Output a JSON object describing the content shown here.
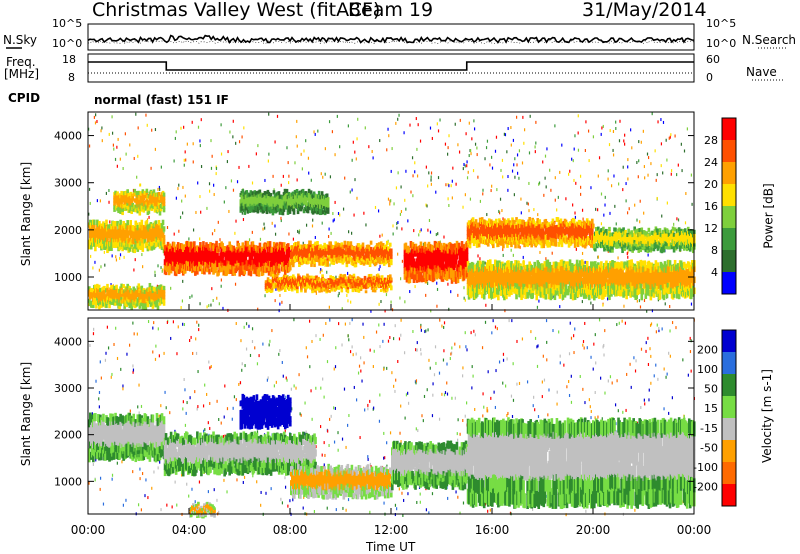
{
  "header": {
    "station": "Christmas Valley West (fitACF)",
    "beam": "Beam 19",
    "date": "31/May/2014",
    "mode": "normal (fast) 151 IF"
  },
  "nsky_panel": {
    "left_label": "N.Sky",
    "left_ticks": [
      "10^5",
      "10^0"
    ],
    "right_label": "N.Search",
    "right_ticks": [
      "10^5",
      "10^0"
    ]
  },
  "freq_panel": {
    "left_label_line1": "Freq.",
    "left_label_line2": "[MHz]",
    "left_ticks": [
      "18",
      "8"
    ],
    "right_label": "Nave",
    "right_ticks": [
      "60",
      "0"
    ]
  },
  "cpid_label": "CPID",
  "colors": {
    "power_scale": [
      "#0000ff",
      "#2d6e2d",
      "#3c9b3c",
      "#7ecf3c",
      "#ffe000",
      "#ffa000",
      "#ff5000",
      "#ff0000"
    ],
    "velocity_scale": [
      "#0000d0",
      "#2a6ede",
      "#2e8b2e",
      "#77dd44",
      "#c0c0c0",
      "#ffa000",
      "#ff6a00",
      "#ff0000"
    ]
  },
  "chart_data": [
    {
      "type": "heatmap",
      "name": "power",
      "ylabel": "Slant Range [km]",
      "yticks": [
        "1000",
        "2000",
        "3000",
        "4000"
      ],
      "ylim": [
        300,
        4500
      ],
      "xlim": [
        0,
        24
      ],
      "colorbar": {
        "label": "Power [dB]",
        "ticks": [
          "28",
          "24",
          "20",
          "16",
          "12",
          "8",
          "4"
        ]
      },
      "bands": [
        {
          "t": [
            0,
            3
          ],
          "r": [
            1600,
            2150
          ],
          "level": 5
        },
        {
          "t": [
            1,
            3
          ],
          "r": [
            2400,
            2800
          ],
          "level": 5
        },
        {
          "t": [
            0,
            3
          ],
          "r": [
            400,
            800
          ],
          "level": 5
        },
        {
          "t": [
            3,
            8
          ],
          "r": [
            1100,
            1700
          ],
          "level": 7
        },
        {
          "t": [
            6,
            9.5
          ],
          "r": [
            2400,
            2800
          ],
          "level": 3
        },
        {
          "t": [
            7,
            12
          ],
          "r": [
            750,
            1000
          ],
          "level": 6
        },
        {
          "t": [
            8,
            12
          ],
          "r": [
            1300,
            1700
          ],
          "level": 6
        },
        {
          "t": [
            12.5,
            15
          ],
          "r": [
            950,
            1700
          ],
          "level": 7
        },
        {
          "t": [
            15,
            20
          ],
          "r": [
            1700,
            2200
          ],
          "level": 6
        },
        {
          "t": [
            15,
            24
          ],
          "r": [
            600,
            1300
          ],
          "level": 5
        },
        {
          "t": [
            20,
            24
          ],
          "r": [
            1600,
            2000
          ],
          "level": 4
        }
      ]
    },
    {
      "type": "heatmap",
      "name": "velocity",
      "ylabel": "Slant Range [km]",
      "yticks": [
        "1000",
        "2000",
        "3000",
        "4000"
      ],
      "ylim": [
        300,
        4500
      ],
      "xlim": [
        0,
        24
      ],
      "colorbar": {
        "label": "Velocity [m s-1]",
        "ticks": [
          "200",
          "100",
          "50",
          "15",
          "-15",
          "-50",
          "-100",
          "-200"
        ]
      },
      "bands": [
        {
          "t": [
            0,
            3
          ],
          "r": [
            1500,
            2400
          ],
          "level": 4
        },
        {
          "t": [
            3,
            9
          ],
          "r": [
            1200,
            2000
          ],
          "level": 4
        },
        {
          "t": [
            6,
            8
          ],
          "r": [
            2200,
            2800
          ],
          "level": 0
        },
        {
          "t": [
            8,
            12
          ],
          "r": [
            700,
            1300
          ],
          "level": 5
        },
        {
          "t": [
            12,
            15
          ],
          "r": [
            900,
            1800
          ],
          "level": 4
        },
        {
          "t": [
            15,
            24
          ],
          "r": [
            500,
            2300
          ],
          "level": 4
        },
        {
          "t": [
            4,
            5
          ],
          "r": [
            300,
            500
          ],
          "level": 5
        }
      ]
    }
  ],
  "xaxis": {
    "label": "Time UT",
    "ticks": [
      "00:00",
      "04:00",
      "08:00",
      "12:00",
      "16:00",
      "20:00",
      "00:00"
    ]
  }
}
